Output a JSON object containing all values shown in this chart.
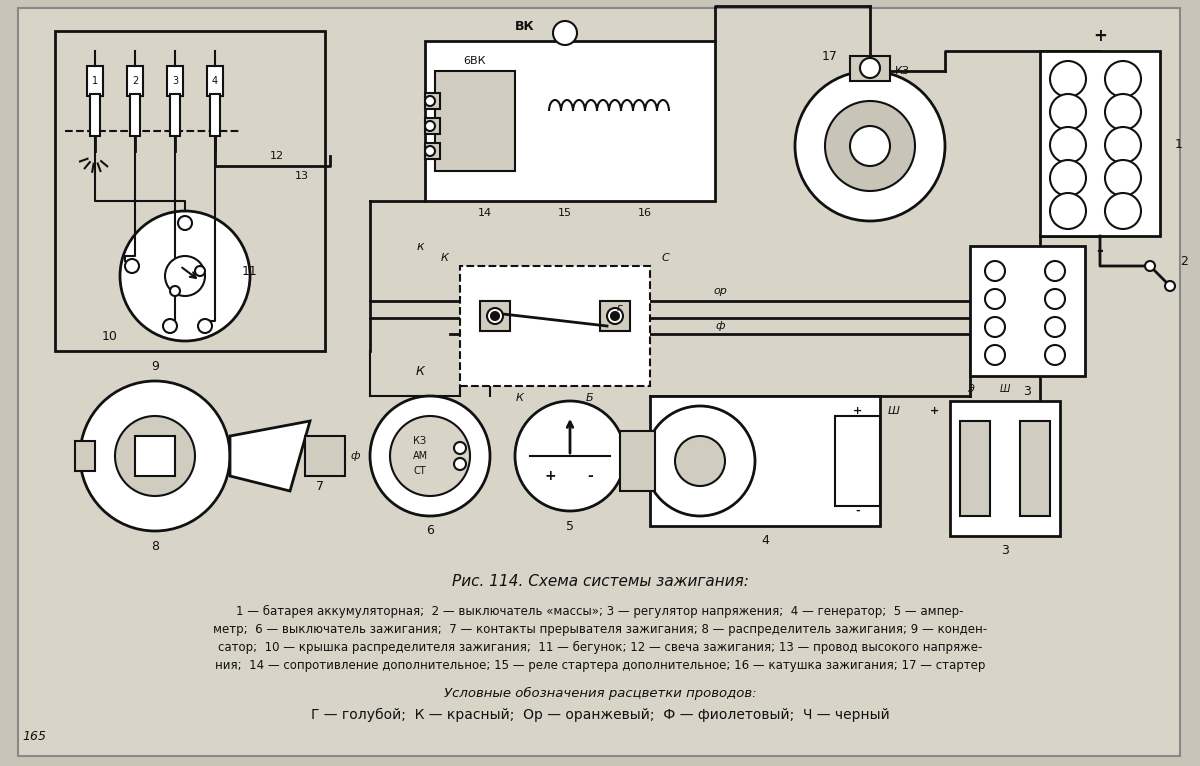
{
  "bg_color": "#c8c4b8",
  "paper_color": "#d8d4c8",
  "title": "Рис. 114. Схема системы зажигания:",
  "caption_line1": "1 — батарея аккумуляторная;  2 — выключатель «массы»; 3 — регулятор напряжения;  4 — генератор;  5 — ампер-",
  "caption_line2": "метр;  6 — выключатель зажигания;  7 — контакты прерывателя зажигания; 8 — распределитель зажигания; 9 — конден-",
  "caption_line3": "сатор;  10 — крышка распределителя зажигания;  11 — бегунок; 12 — свеча зажигания; 13 — провод высокого напряже-",
  "caption_line4": "ния;  14 — сопротивление дополнительное; 15 — реле стартера дополнительное; 16 — катушка зажигания; 17 — стартер",
  "legend_title": "Условные обозначения расцветки проводов:",
  "legend_line": "Г — голубой;  К — красный;  Ор — оранжевый;  Ф — фиолетовый;  Ч — черный",
  "text_color": "#111111",
  "line_color": "#111111",
  "page_number": "165"
}
